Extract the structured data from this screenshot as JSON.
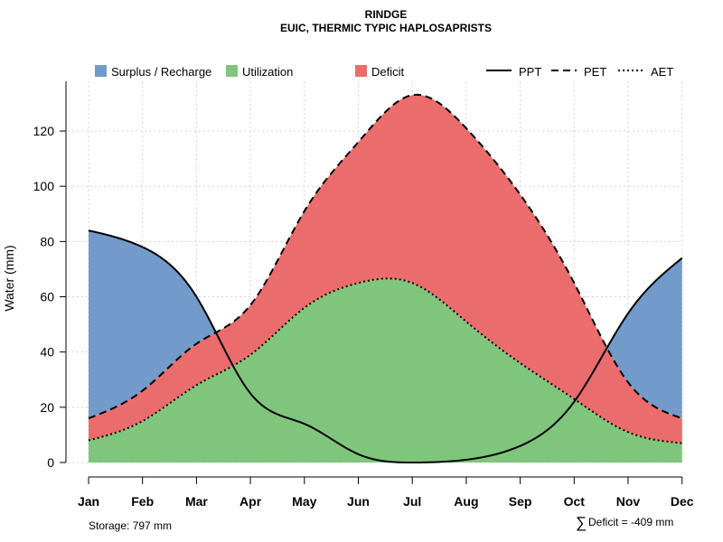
{
  "chart_data": {
    "type": "area",
    "title": "RINDGE",
    "subtitle": "EUIC, THERMIC TYPIC HAPLOSAPRISTS",
    "ylabel": "Water (mm)",
    "xlabel": "",
    "ylim": [
      0,
      138
    ],
    "yticks": [
      0,
      20,
      40,
      60,
      80,
      100,
      120
    ],
    "grid": true,
    "legend_position": "top",
    "categories": [
      "Jan",
      "Feb",
      "Mar",
      "Apr",
      "May",
      "Jun",
      "Jul",
      "Aug",
      "Sep",
      "Oct",
      "Nov",
      "Dec"
    ],
    "series": [
      {
        "name": "PPT",
        "style": "solid",
        "values": [
          84,
          78,
          60,
          25,
          14,
          3,
          0,
          1,
          6,
          22,
          54,
          74
        ]
      },
      {
        "name": "PET",
        "style": "dashed",
        "values": [
          16,
          26,
          43,
          57,
          91,
          116,
          133,
          121,
          97,
          65,
          29,
          16
        ]
      },
      {
        "name": "AET",
        "style": "dotted",
        "values": [
          8,
          15,
          28,
          39,
          56,
          65,
          65,
          51,
          36,
          23,
          11,
          7
        ]
      }
    ],
    "areas": [
      {
        "name": "Surplus / Recharge",
        "color": "#729ACA"
      },
      {
        "name": "Utilization",
        "color": "#80C57C"
      },
      {
        "name": "Deficit",
        "color": "#EB6C6C"
      }
    ],
    "legend_lines": [
      {
        "name": "PPT",
        "style": "solid"
      },
      {
        "name": "PET",
        "style": "dashed"
      },
      {
        "name": "AET",
        "style": "dotted"
      }
    ],
    "storage_label": "Storage: 797 mm",
    "deficit_symbol": "∑",
    "deficit_label": "Deficit = -409 mm"
  }
}
